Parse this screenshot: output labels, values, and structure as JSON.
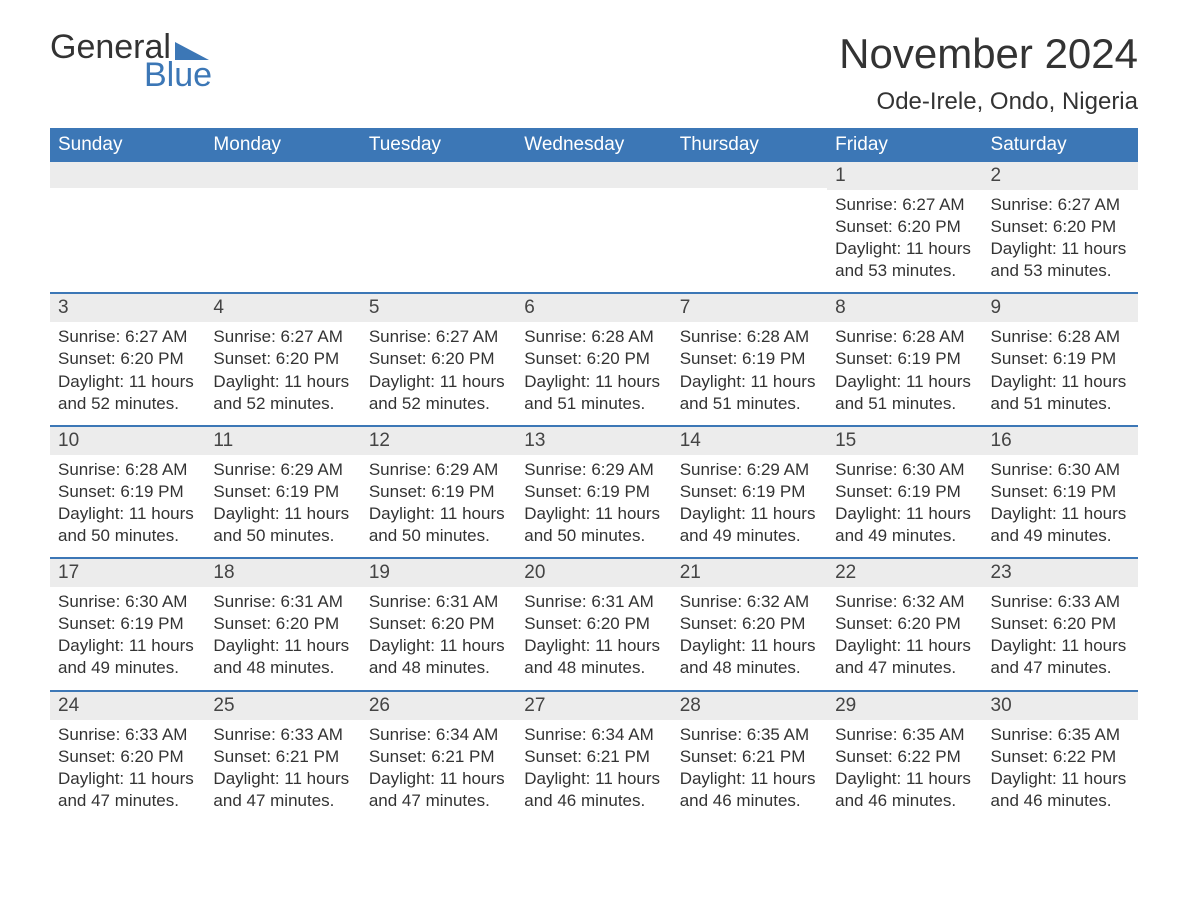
{
  "logo": {
    "word1": "General",
    "word2": "Blue"
  },
  "title": "November 2024",
  "location": "Ode-Irele, Ondo, Nigeria",
  "colors": {
    "brand_blue": "#3c77b6",
    "header_text": "#ffffff",
    "daybar_bg": "#ececec",
    "text": "#333333",
    "background": "#ffffff"
  },
  "typography": {
    "title_fontsize": 42,
    "location_fontsize": 24,
    "header_fontsize": 19,
    "daynum_fontsize": 19,
    "body_fontsize": 17,
    "font_family": "Arial"
  },
  "calendar": {
    "day_headers": [
      "Sunday",
      "Monday",
      "Tuesday",
      "Wednesday",
      "Thursday",
      "Friday",
      "Saturday"
    ],
    "weeks": [
      [
        null,
        null,
        null,
        null,
        null,
        {
          "n": "1",
          "sunrise": "Sunrise: 6:27 AM",
          "sunset": "Sunset: 6:20 PM",
          "daylight": "Daylight: 11 hours and 53 minutes."
        },
        {
          "n": "2",
          "sunrise": "Sunrise: 6:27 AM",
          "sunset": "Sunset: 6:20 PM",
          "daylight": "Daylight: 11 hours and 53 minutes."
        }
      ],
      [
        {
          "n": "3",
          "sunrise": "Sunrise: 6:27 AM",
          "sunset": "Sunset: 6:20 PM",
          "daylight": "Daylight: 11 hours and 52 minutes."
        },
        {
          "n": "4",
          "sunrise": "Sunrise: 6:27 AM",
          "sunset": "Sunset: 6:20 PM",
          "daylight": "Daylight: 11 hours and 52 minutes."
        },
        {
          "n": "5",
          "sunrise": "Sunrise: 6:27 AM",
          "sunset": "Sunset: 6:20 PM",
          "daylight": "Daylight: 11 hours and 52 minutes."
        },
        {
          "n": "6",
          "sunrise": "Sunrise: 6:28 AM",
          "sunset": "Sunset: 6:20 PM",
          "daylight": "Daylight: 11 hours and 51 minutes."
        },
        {
          "n": "7",
          "sunrise": "Sunrise: 6:28 AM",
          "sunset": "Sunset: 6:19 PM",
          "daylight": "Daylight: 11 hours and 51 minutes."
        },
        {
          "n": "8",
          "sunrise": "Sunrise: 6:28 AM",
          "sunset": "Sunset: 6:19 PM",
          "daylight": "Daylight: 11 hours and 51 minutes."
        },
        {
          "n": "9",
          "sunrise": "Sunrise: 6:28 AM",
          "sunset": "Sunset: 6:19 PM",
          "daylight": "Daylight: 11 hours and 51 minutes."
        }
      ],
      [
        {
          "n": "10",
          "sunrise": "Sunrise: 6:28 AM",
          "sunset": "Sunset: 6:19 PM",
          "daylight": "Daylight: 11 hours and 50 minutes."
        },
        {
          "n": "11",
          "sunrise": "Sunrise: 6:29 AM",
          "sunset": "Sunset: 6:19 PM",
          "daylight": "Daylight: 11 hours and 50 minutes."
        },
        {
          "n": "12",
          "sunrise": "Sunrise: 6:29 AM",
          "sunset": "Sunset: 6:19 PM",
          "daylight": "Daylight: 11 hours and 50 minutes."
        },
        {
          "n": "13",
          "sunrise": "Sunrise: 6:29 AM",
          "sunset": "Sunset: 6:19 PM",
          "daylight": "Daylight: 11 hours and 50 minutes."
        },
        {
          "n": "14",
          "sunrise": "Sunrise: 6:29 AM",
          "sunset": "Sunset: 6:19 PM",
          "daylight": "Daylight: 11 hours and 49 minutes."
        },
        {
          "n": "15",
          "sunrise": "Sunrise: 6:30 AM",
          "sunset": "Sunset: 6:19 PM",
          "daylight": "Daylight: 11 hours and 49 minutes."
        },
        {
          "n": "16",
          "sunrise": "Sunrise: 6:30 AM",
          "sunset": "Sunset: 6:19 PM",
          "daylight": "Daylight: 11 hours and 49 minutes."
        }
      ],
      [
        {
          "n": "17",
          "sunrise": "Sunrise: 6:30 AM",
          "sunset": "Sunset: 6:19 PM",
          "daylight": "Daylight: 11 hours and 49 minutes."
        },
        {
          "n": "18",
          "sunrise": "Sunrise: 6:31 AM",
          "sunset": "Sunset: 6:20 PM",
          "daylight": "Daylight: 11 hours and 48 minutes."
        },
        {
          "n": "19",
          "sunrise": "Sunrise: 6:31 AM",
          "sunset": "Sunset: 6:20 PM",
          "daylight": "Daylight: 11 hours and 48 minutes."
        },
        {
          "n": "20",
          "sunrise": "Sunrise: 6:31 AM",
          "sunset": "Sunset: 6:20 PM",
          "daylight": "Daylight: 11 hours and 48 minutes."
        },
        {
          "n": "21",
          "sunrise": "Sunrise: 6:32 AM",
          "sunset": "Sunset: 6:20 PM",
          "daylight": "Daylight: 11 hours and 48 minutes."
        },
        {
          "n": "22",
          "sunrise": "Sunrise: 6:32 AM",
          "sunset": "Sunset: 6:20 PM",
          "daylight": "Daylight: 11 hours and 47 minutes."
        },
        {
          "n": "23",
          "sunrise": "Sunrise: 6:33 AM",
          "sunset": "Sunset: 6:20 PM",
          "daylight": "Daylight: 11 hours and 47 minutes."
        }
      ],
      [
        {
          "n": "24",
          "sunrise": "Sunrise: 6:33 AM",
          "sunset": "Sunset: 6:20 PM",
          "daylight": "Daylight: 11 hours and 47 minutes."
        },
        {
          "n": "25",
          "sunrise": "Sunrise: 6:33 AM",
          "sunset": "Sunset: 6:21 PM",
          "daylight": "Daylight: 11 hours and 47 minutes."
        },
        {
          "n": "26",
          "sunrise": "Sunrise: 6:34 AM",
          "sunset": "Sunset: 6:21 PM",
          "daylight": "Daylight: 11 hours and 47 minutes."
        },
        {
          "n": "27",
          "sunrise": "Sunrise: 6:34 AM",
          "sunset": "Sunset: 6:21 PM",
          "daylight": "Daylight: 11 hours and 46 minutes."
        },
        {
          "n": "28",
          "sunrise": "Sunrise: 6:35 AM",
          "sunset": "Sunset: 6:21 PM",
          "daylight": "Daylight: 11 hours and 46 minutes."
        },
        {
          "n": "29",
          "sunrise": "Sunrise: 6:35 AM",
          "sunset": "Sunset: 6:22 PM",
          "daylight": "Daylight: 11 hours and 46 minutes."
        },
        {
          "n": "30",
          "sunrise": "Sunrise: 6:35 AM",
          "sunset": "Sunset: 6:22 PM",
          "daylight": "Daylight: 11 hours and 46 minutes."
        }
      ]
    ]
  }
}
